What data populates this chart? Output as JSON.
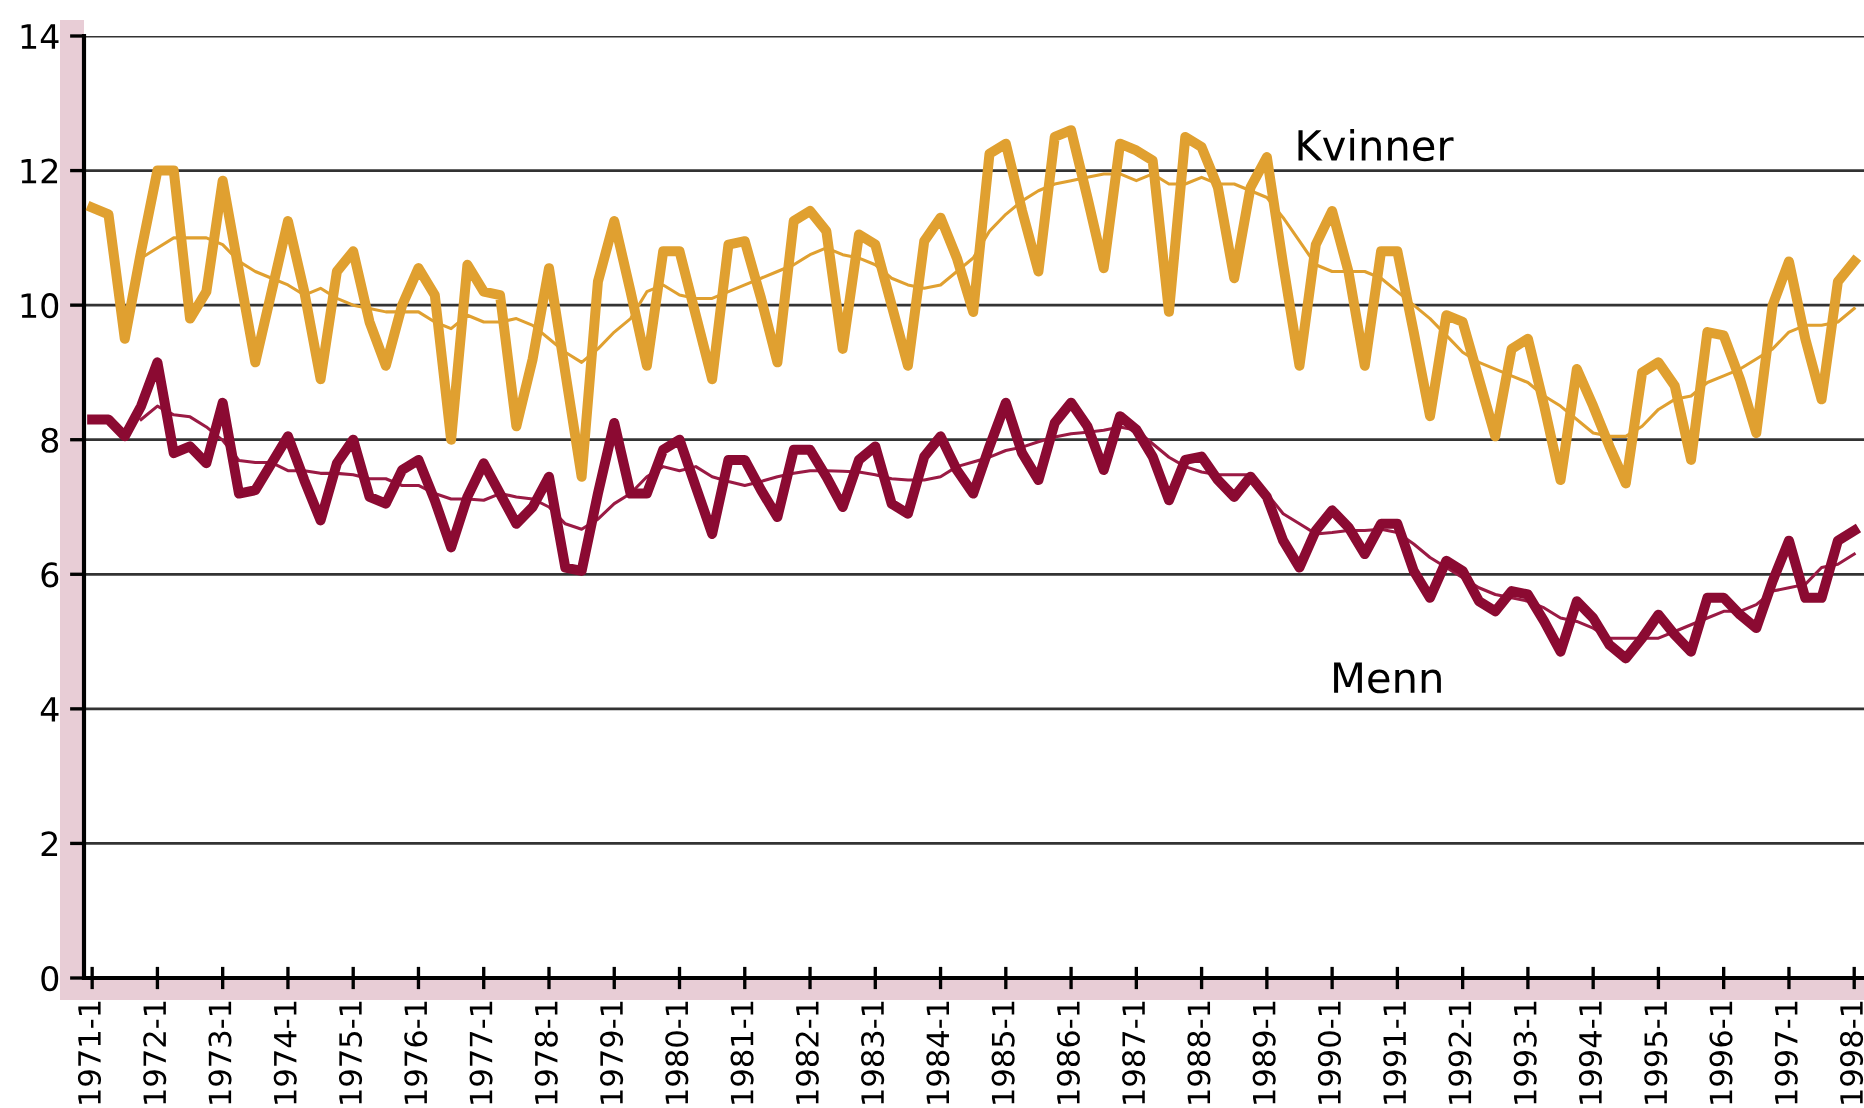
{
  "chart_data": {
    "type": "line",
    "categories": [
      "1971-1",
      null,
      null,
      null,
      "1972-1",
      null,
      null,
      null,
      "1973-1",
      null,
      null,
      null,
      "1974-1",
      null,
      null,
      null,
      "1975-1",
      null,
      null,
      null,
      "1976-1",
      null,
      null,
      null,
      "1977-1",
      null,
      null,
      null,
      "1978-1",
      null,
      null,
      null,
      "1979-1",
      null,
      null,
      null,
      "1980-1",
      null,
      null,
      null,
      "1981-1",
      null,
      null,
      null,
      "1982-1",
      null,
      null,
      null,
      "1983-1",
      null,
      null,
      null,
      "1984-1",
      null,
      null,
      null,
      "1985-1",
      null,
      null,
      null,
      "1986-1",
      null,
      null,
      null,
      "1987-1",
      null,
      null,
      null,
      "1988-1",
      null,
      null,
      null,
      "1989-1",
      null,
      null,
      null,
      "1990-1",
      null,
      null,
      null,
      "1991-1",
      null,
      null,
      null,
      "1992-1",
      null,
      null,
      null,
      "1993-1",
      null,
      null,
      null,
      "1994-1",
      null,
      null,
      null,
      "1995-1",
      null,
      null,
      null,
      "1996-1",
      null,
      null,
      null,
      "1997-1",
      null,
      null,
      null,
      "1998-1"
    ],
    "series": [
      {
        "name": "Kvinner",
        "color": "#e0a030",
        "values": [
          11.45,
          11.35,
          9.5,
          10.8,
          12.0,
          12.0,
          9.8,
          10.2,
          11.85,
          10.5,
          9.15,
          10.2,
          11.25,
          10.2,
          8.9,
          10.5,
          10.8,
          9.75,
          9.1,
          10.0,
          10.55,
          10.15,
          8.0,
          10.6,
          10.2,
          10.15,
          8.2,
          9.2,
          10.55,
          9.0,
          7.45,
          10.35,
          11.25,
          10.2,
          9.1,
          10.8,
          10.8,
          9.85,
          8.9,
          10.9,
          10.95,
          10.1,
          9.15,
          11.25,
          11.4,
          11.1,
          9.35,
          11.05,
          10.9,
          10.0,
          9.1,
          10.95,
          11.3,
          10.7,
          9.9,
          12.25,
          12.4,
          11.4,
          10.5,
          12.5,
          12.6,
          11.6,
          10.55,
          12.4,
          12.3,
          12.15,
          9.9,
          12.5,
          12.35,
          11.75,
          10.4,
          11.75,
          12.2,
          10.6,
          9.1,
          10.9,
          11.4,
          10.5,
          9.1,
          10.8,
          10.8,
          9.6,
          8.35,
          9.85,
          9.75,
          8.9,
          8.05,
          9.35,
          9.5,
          8.5,
          7.4,
          9.05,
          8.5,
          7.9,
          7.35,
          9.0,
          9.15,
          8.8,
          7.7,
          9.6,
          9.55,
          8.9,
          8.1,
          10.0,
          10.65,
          9.5,
          8.6,
          10.35,
          10.65
        ]
      },
      {
        "color": "#e0a030",
        "values": [
          null,
          null,
          null,
          10.7,
          10.85,
          11.0,
          11.0,
          11.0,
          10.9,
          10.65,
          10.5,
          10.4,
          10.3,
          10.15,
          10.25,
          10.1,
          10.0,
          9.95,
          9.9,
          9.9,
          9.9,
          9.75,
          9.65,
          9.85,
          9.75,
          9.75,
          9.8,
          9.7,
          9.5,
          9.3,
          9.15,
          9.35,
          9.6,
          9.8,
          10.2,
          10.3,
          10.15,
          10.1,
          10.1,
          10.2,
          10.3,
          10.4,
          10.5,
          10.6,
          10.75,
          10.85,
          10.75,
          10.7,
          10.6,
          10.4,
          10.3,
          10.25,
          10.3,
          10.5,
          10.7,
          11.1,
          11.35,
          11.55,
          11.7,
          11.8,
          11.85,
          11.9,
          11.95,
          11.95,
          11.85,
          11.95,
          11.8,
          11.8,
          11.9,
          11.8,
          11.8,
          11.7,
          11.6,
          11.3,
          10.95,
          10.6,
          10.5,
          10.5,
          10.5,
          10.4,
          10.2,
          10.0,
          9.8,
          9.55,
          9.3,
          9.15,
          9.05,
          8.95,
          8.85,
          8.65,
          8.5,
          8.3,
          8.1,
          8.05,
          8.05,
          8.2,
          8.45,
          8.6,
          8.65,
          8.85,
          8.95,
          9.05,
          9.2,
          9.35,
          9.6,
          9.7,
          9.7,
          9.75,
          9.95
        ]
      },
      {
        "name": "Menn",
        "color": "#8b0a32",
        "values": [
          8.3,
          8.3,
          8.05,
          8.5,
          9.15,
          7.8,
          7.9,
          7.65,
          8.55,
          7.2,
          7.25,
          7.65,
          8.05,
          7.4,
          6.8,
          7.65,
          8.0,
          7.15,
          7.05,
          7.55,
          7.7,
          7.1,
          6.4,
          7.15,
          7.65,
          7.2,
          6.75,
          7.0,
          7.45,
          6.1,
          6.05,
          7.2,
          8.25,
          7.2,
          7.2,
          7.85,
          8.0,
          7.3,
          6.6,
          7.7,
          7.7,
          7.25,
          6.85,
          7.85,
          7.85,
          7.45,
          7.0,
          7.7,
          7.9,
          7.05,
          6.9,
          7.75,
          8.05,
          7.55,
          7.2,
          7.9,
          8.55,
          7.8,
          7.4,
          8.25,
          8.55,
          8.2,
          7.55,
          8.35,
          8.15,
          7.75,
          7.1,
          7.7,
          7.75,
          7.4,
          7.15,
          7.45,
          7.15,
          6.5,
          6.1,
          6.65,
          6.95,
          6.7,
          6.3,
          6.75,
          6.75,
          6.05,
          5.65,
          6.2,
          6.05,
          5.6,
          5.45,
          5.75,
          5.7,
          5.3,
          4.85,
          5.6,
          5.35,
          4.95,
          4.75,
          5.05,
          5.4,
          5.1,
          4.85,
          5.65,
          5.65,
          5.4,
          5.2,
          5.9,
          6.5,
          5.65,
          5.65,
          6.5,
          6.65
        ]
      },
      {
        "color": "#9a1a44",
        "values": [
          null,
          null,
          null,
          8.3,
          8.5,
          8.37,
          8.34,
          8.19,
          7.99,
          7.69,
          7.66,
          7.66,
          7.54,
          7.54,
          7.5,
          7.5,
          7.48,
          7.42,
          7.42,
          7.32,
          7.32,
          7.2,
          7.12,
          7.12,
          7.1,
          7.2,
          7.15,
          7.12,
          7.0,
          6.75,
          6.67,
          6.82,
          7.05,
          7.2,
          7.45,
          7.6,
          7.54,
          7.6,
          7.45,
          7.38,
          7.32,
          7.38,
          7.45,
          7.5,
          7.54,
          7.54,
          7.53,
          7.52,
          7.48,
          7.42,
          7.4,
          7.4,
          7.45,
          7.6,
          7.67,
          7.74,
          7.84,
          7.89,
          7.97,
          8.04,
          8.09,
          8.11,
          8.14,
          8.19,
          8.14,
          7.94,
          7.74,
          7.6,
          7.52,
          7.48,
          7.48,
          7.48,
          7.2,
          6.9,
          6.75,
          6.6,
          6.62,
          6.65,
          6.65,
          6.67,
          6.62,
          6.45,
          6.25,
          6.1,
          5.95,
          5.8,
          5.7,
          5.65,
          5.6,
          5.5,
          5.35,
          5.3,
          5.2,
          5.05,
          5.05,
          5.05,
          5.05,
          5.15,
          5.25,
          5.35,
          5.45,
          5.45,
          5.55,
          5.75,
          5.8,
          5.85,
          6.1,
          6.15,
          6.3
        ]
      }
    ],
    "ylim": [
      0,
      14
    ],
    "yticks": [
      0,
      2,
      4,
      6,
      8,
      10,
      12,
      14
    ],
    "grid": "y",
    "legend": false,
    "marker": "none",
    "line_style": "solid"
  }
}
